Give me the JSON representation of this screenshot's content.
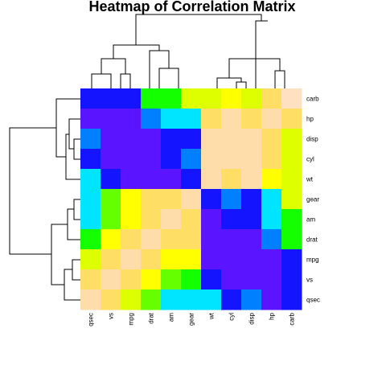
{
  "chart_data": {
    "type": "heatmap",
    "title": "Heatmap of Correlation Matrix",
    "rows": [
      "carb",
      "hp",
      "disp",
      "cyl",
      "wt",
      "gear",
      "am",
      "drat",
      "mpg",
      "vs",
      "qsec"
    ],
    "cols": [
      "qsec",
      "vs",
      "mpg",
      "drat",
      "am",
      "gear",
      "wt",
      "cyl",
      "disp",
      "hp",
      "carb"
    ],
    "palette": [
      "#1414FF",
      "#5A14FF",
      "#0080FF",
      "#00E5FF",
      "#14FF00",
      "#66FF00",
      "#DDFF00",
      "#FFFF00",
      "#FFDE66",
      "#FFDDAA",
      "#FFE1C2"
    ],
    "cells": [
      [
        0,
        0,
        0,
        4,
        4,
        6,
        6,
        7,
        6,
        8,
        10
      ],
      [
        1,
        1,
        1,
        2,
        3,
        3,
        8,
        9,
        8,
        9,
        8
      ],
      [
        2,
        1,
        1,
        1,
        0,
        0,
        9,
        9,
        9,
        8,
        6
      ],
      [
        0,
        1,
        1,
        1,
        0,
        2,
        9,
        9,
        9,
        8,
        6
      ],
      [
        3,
        0,
        1,
        1,
        1,
        0,
        9,
        8,
        9,
        7,
        6
      ],
      [
        3,
        5,
        7,
        8,
        8,
        9,
        0,
        2,
        0,
        3,
        6
      ],
      [
        3,
        5,
        7,
        8,
        9,
        8,
        1,
        0,
        0,
        3,
        4
      ],
      [
        4,
        7,
        8,
        9,
        8,
        8,
        1,
        1,
        1,
        2,
        4
      ],
      [
        6,
        8,
        9,
        8,
        7,
        7,
        1,
        1,
        1,
        1,
        0
      ],
      [
        8,
        9,
        8,
        7,
        5,
        4,
        0,
        1,
        1,
        1,
        0
      ],
      [
        9,
        8,
        6,
        5,
        3,
        3,
        3,
        0,
        2,
        1,
        0
      ]
    ],
    "grid": false,
    "legend": "none",
    "row_dendrogram": "left",
    "col_dendrogram": "top"
  }
}
